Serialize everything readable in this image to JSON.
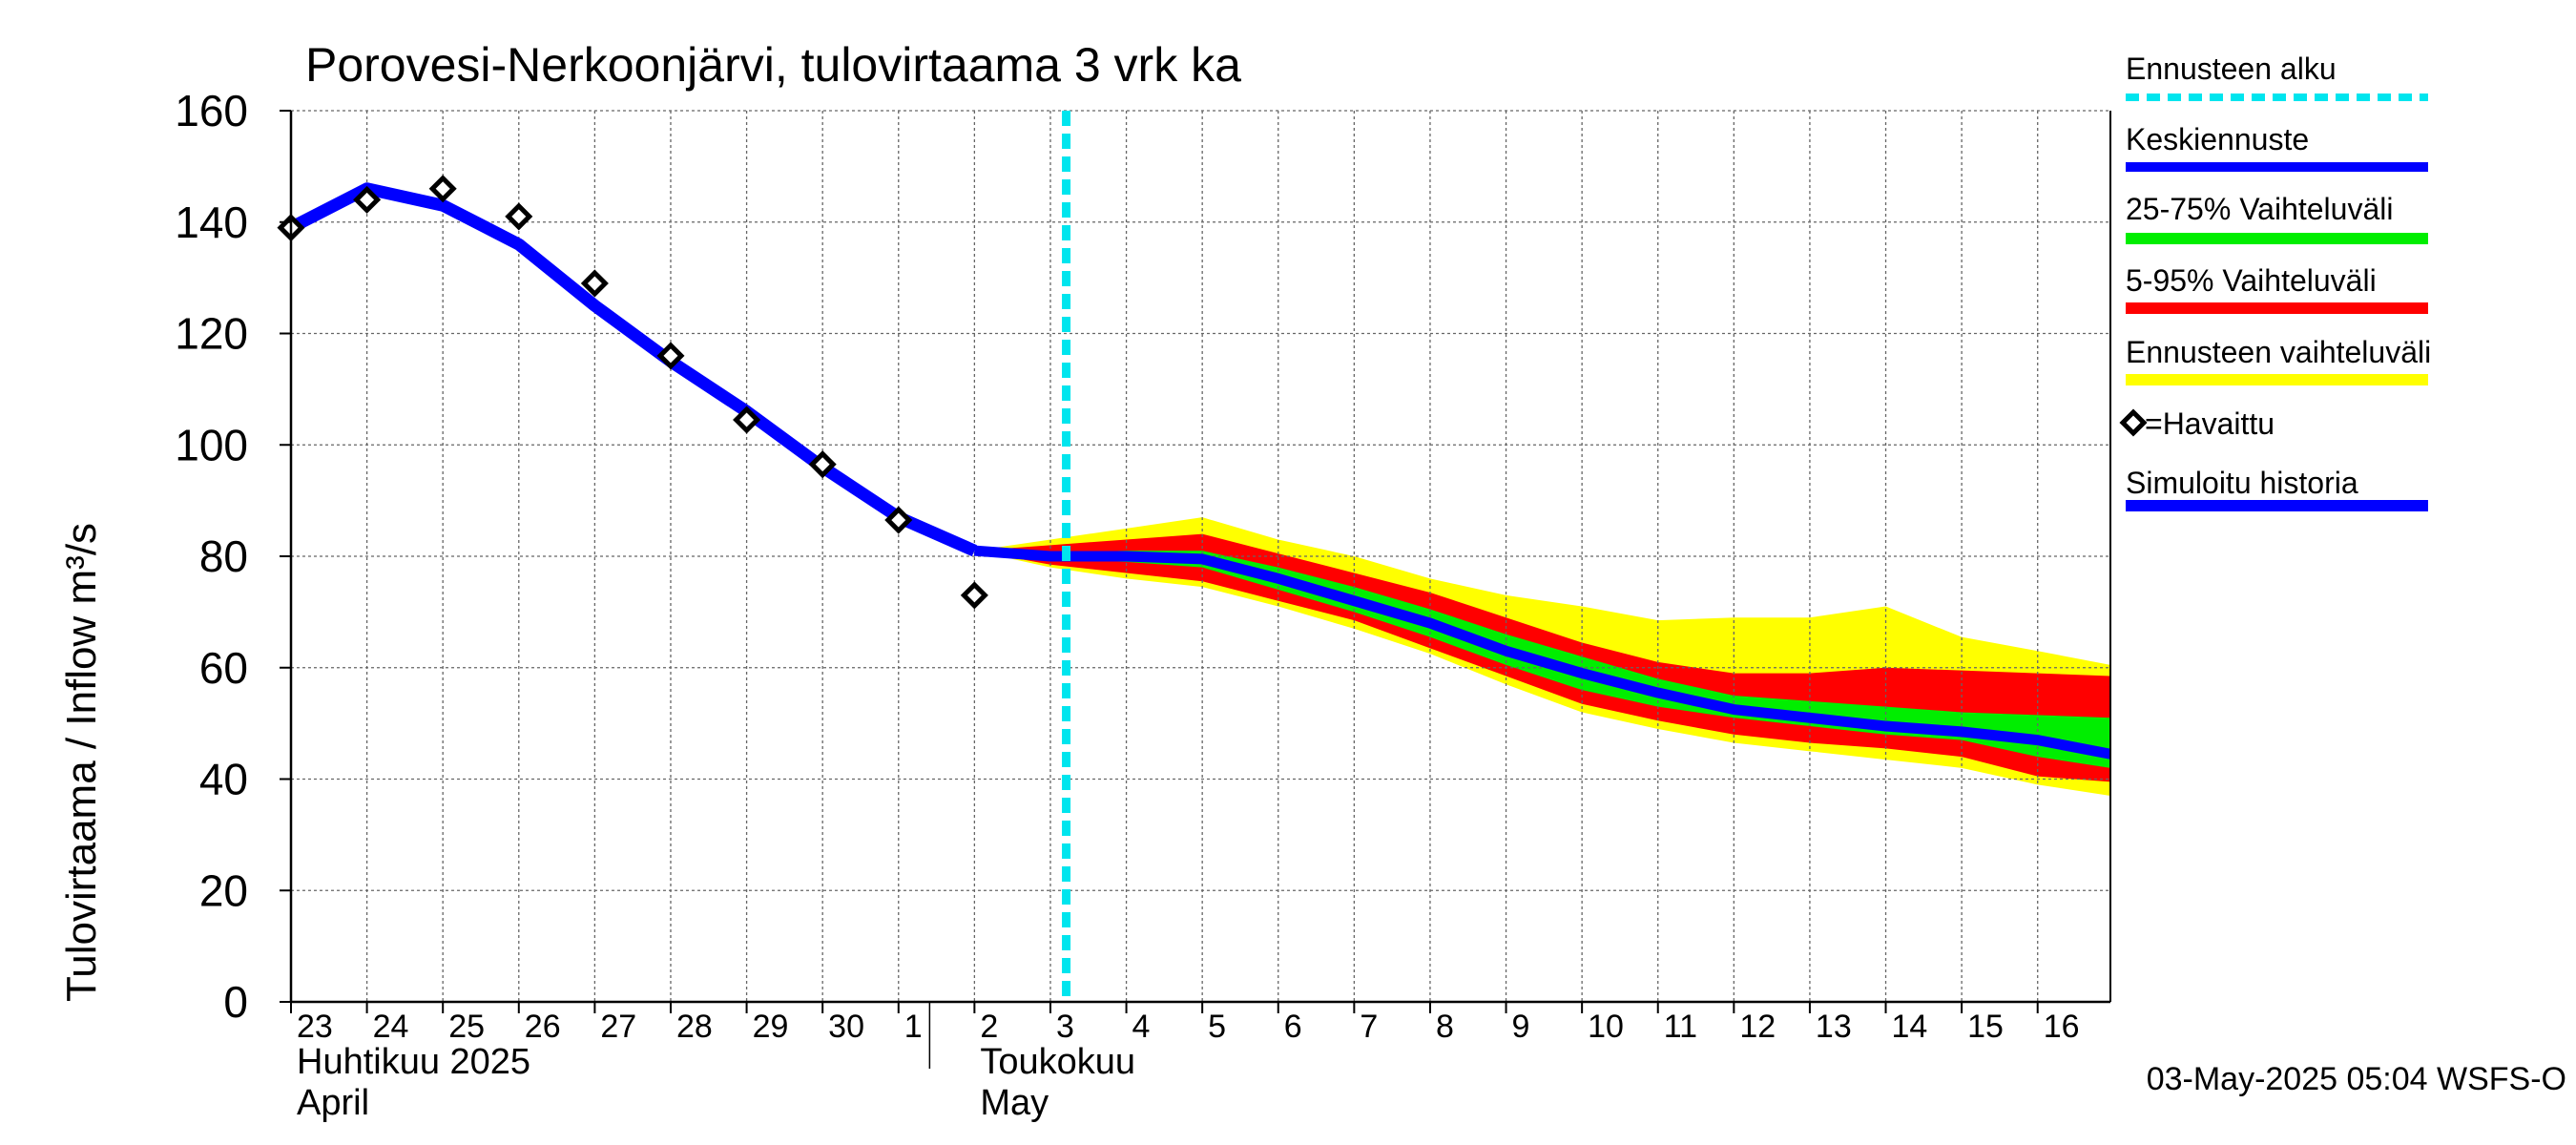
{
  "chart_data": {
    "type": "line",
    "title": "Porovesi-Nerkoonjärvi, tulovirtaama  3 vrk ka",
    "ylabel": "Tulovirtaama / Inflow    m³/s",
    "ylim": [
      0,
      160
    ],
    "yticks": [
      0,
      20,
      40,
      60,
      80,
      100,
      120,
      140,
      160
    ],
    "xlim": [
      "2025-04-23",
      "2025-05-16T23:00"
    ],
    "x_tick_labels": [
      "23",
      "24",
      "25",
      "26",
      "27",
      "28",
      "29",
      "30",
      "1",
      "2",
      "3",
      "4",
      "5",
      "6",
      "7",
      "8",
      "9",
      "10",
      "11",
      "12",
      "13",
      "14",
      "15",
      "16"
    ],
    "month_labels": [
      {
        "line1": "Huhtikuu  2025",
        "line2": "April",
        "start": "2025-04-23"
      },
      {
        "line1": "Toukokuu",
        "line2": "May",
        "start": "2025-05-02"
      }
    ],
    "forecast_start": "2025-05-03T05:00",
    "grid": true,
    "legend_position": "right",
    "legend": [
      {
        "label": "Ennusteen alku",
        "color": "#00e5ee",
        "style": "dashed"
      },
      {
        "label": "Keskiennuste",
        "color": "#0000ff",
        "style": "solid"
      },
      {
        "label": "25-75% Vaihteluväli",
        "color": "#00ee00",
        "style": "solid"
      },
      {
        "label": "5-95% Vaihteluväli",
        "color": "#ff0000",
        "style": "solid"
      },
      {
        "label": "Ennusteen vaihteluväli",
        "color": "#ffff00",
        "style": "solid"
      },
      {
        "label": "=Havaittu",
        "color": "#000000",
        "style": "marker"
      },
      {
        "label": "Simuloitu historia",
        "color": "#0000ff",
        "style": "solid"
      }
    ],
    "footer": "03-May-2025 05:04 WSFS-O",
    "series": {
      "observed": {
        "x": [
          "2025-04-23",
          "2025-04-24",
          "2025-04-25",
          "2025-04-26",
          "2025-04-27",
          "2025-04-28",
          "2025-04-29",
          "2025-04-30",
          "2025-05-01",
          "2025-05-02"
        ],
        "y": [
          139,
          144,
          146,
          141,
          129,
          116,
          104.5,
          96.5,
          86.5,
          73
        ]
      },
      "simulated_history": {
        "x": [
          "2025-04-23",
          "2025-04-24",
          "2025-04-25",
          "2025-04-26",
          "2025-04-27",
          "2025-04-28",
          "2025-04-29",
          "2025-04-30",
          "2025-05-01",
          "2025-05-02"
        ],
        "y": [
          139,
          146,
          143,
          136,
          125,
          115,
          106,
          96,
          87,
          81
        ]
      },
      "forecast": {
        "x": [
          "2025-05-02",
          "2025-05-03",
          "2025-05-04",
          "2025-05-05",
          "2025-05-06",
          "2025-05-07",
          "2025-05-08",
          "2025-05-09",
          "2025-05-10",
          "2025-05-11",
          "2025-05-12",
          "2025-05-13",
          "2025-05-14",
          "2025-05-15",
          "2025-05-16",
          "2025-05-16T23:00"
        ],
        "median": [
          81,
          80,
          80,
          79.5,
          76,
          72,
          68,
          63,
          59,
          55.5,
          52.5,
          51,
          49.5,
          48.5,
          47,
          44.5
        ],
        "p25": [
          81,
          79.5,
          79,
          78,
          74,
          70,
          65.5,
          60.5,
          56,
          53,
          51,
          49.5,
          48,
          47,
          44,
          42
        ],
        "p75": [
          81,
          80.5,
          81,
          81,
          78,
          74.5,
          70.5,
          66,
          62,
          58,
          55,
          54,
          53,
          52,
          51.5,
          51
        ],
        "p5": [
          81,
          78.5,
          77,
          75.5,
          72,
          68.5,
          63.5,
          58.5,
          53.5,
          50.5,
          48,
          46.5,
          45.5,
          44,
          40.5,
          39.5
        ],
        "p95": [
          81,
          82,
          83,
          84,
          80.5,
          77,
          73.5,
          69,
          64.5,
          61,
          59,
          59,
          60,
          59.5,
          59,
          58.5
        ],
        "min": [
          81,
          78,
          76,
          74.5,
          71,
          67,
          62.5,
          57,
          52,
          49,
          46.5,
          45,
          43.5,
          42,
          39,
          37
        ],
        "max": [
          81,
          83,
          85,
          87,
          83,
          80,
          76,
          73,
          71,
          68.5,
          69,
          69,
          71,
          65.5,
          63,
          60.5
        ]
      }
    }
  }
}
